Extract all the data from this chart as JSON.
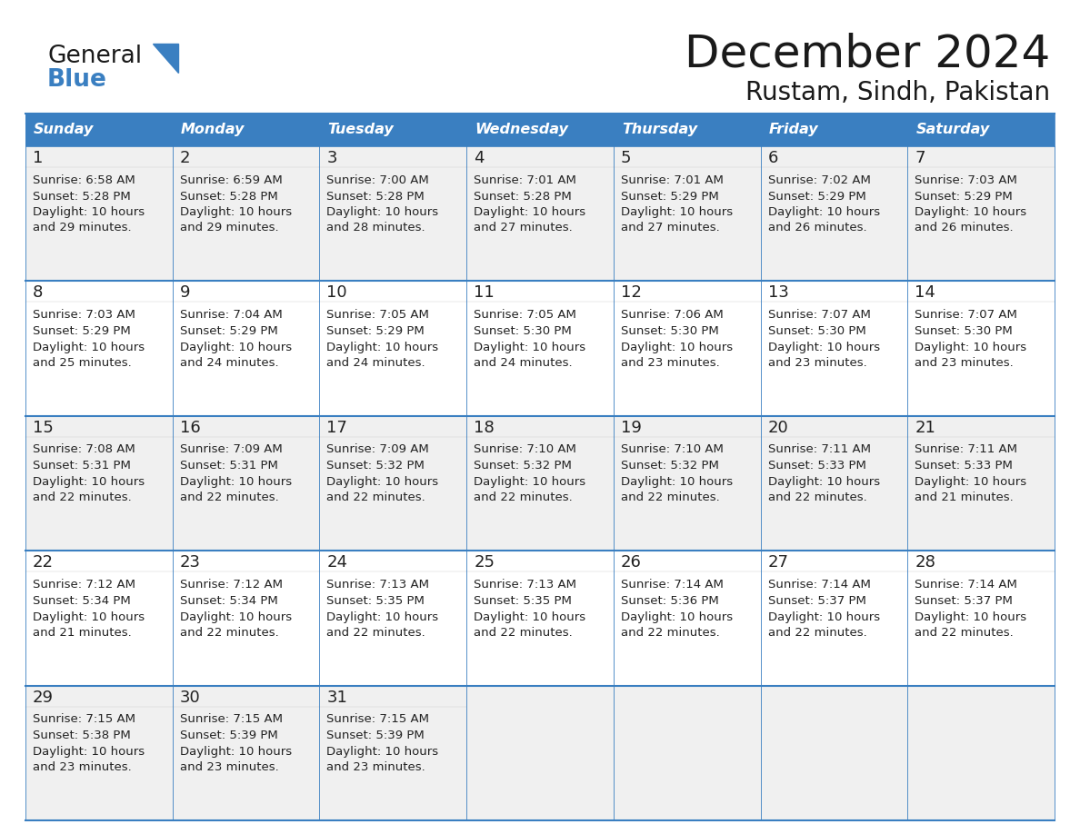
{
  "title": "December 2024",
  "subtitle": "Rustam, Sindh, Pakistan",
  "days_of_week": [
    "Sunday",
    "Monday",
    "Tuesday",
    "Wednesday",
    "Thursday",
    "Friday",
    "Saturday"
  ],
  "header_bg": "#3A7FC1",
  "header_text": "#FFFFFF",
  "row_bg_odd": "#F0F0F0",
  "row_bg_even": "#FFFFFF",
  "text_color": "#222222",
  "border_color": "#3A7FC1",
  "title_color": "#1a1a1a",
  "calendar_data": [
    [
      {
        "day": 1,
        "sunrise": "6:58 AM",
        "sunset": "5:28 PM",
        "daylight": "10 hours",
        "daylight2": "and 29 minutes."
      },
      {
        "day": 2,
        "sunrise": "6:59 AM",
        "sunset": "5:28 PM",
        "daylight": "10 hours",
        "daylight2": "and 29 minutes."
      },
      {
        "day": 3,
        "sunrise": "7:00 AM",
        "sunset": "5:28 PM",
        "daylight": "10 hours",
        "daylight2": "and 28 minutes."
      },
      {
        "day": 4,
        "sunrise": "7:01 AM",
        "sunset": "5:28 PM",
        "daylight": "10 hours",
        "daylight2": "and 27 minutes."
      },
      {
        "day": 5,
        "sunrise": "7:01 AM",
        "sunset": "5:29 PM",
        "daylight": "10 hours",
        "daylight2": "and 27 minutes."
      },
      {
        "day": 6,
        "sunrise": "7:02 AM",
        "sunset": "5:29 PM",
        "daylight": "10 hours",
        "daylight2": "and 26 minutes."
      },
      {
        "day": 7,
        "sunrise": "7:03 AM",
        "sunset": "5:29 PM",
        "daylight": "10 hours",
        "daylight2": "and 26 minutes."
      }
    ],
    [
      {
        "day": 8,
        "sunrise": "7:03 AM",
        "sunset": "5:29 PM",
        "daylight": "10 hours",
        "daylight2": "and 25 minutes."
      },
      {
        "day": 9,
        "sunrise": "7:04 AM",
        "sunset": "5:29 PM",
        "daylight": "10 hours",
        "daylight2": "and 24 minutes."
      },
      {
        "day": 10,
        "sunrise": "7:05 AM",
        "sunset": "5:29 PM",
        "daylight": "10 hours",
        "daylight2": "and 24 minutes."
      },
      {
        "day": 11,
        "sunrise": "7:05 AM",
        "sunset": "5:30 PM",
        "daylight": "10 hours",
        "daylight2": "and 24 minutes."
      },
      {
        "day": 12,
        "sunrise": "7:06 AM",
        "sunset": "5:30 PM",
        "daylight": "10 hours",
        "daylight2": "and 23 minutes."
      },
      {
        "day": 13,
        "sunrise": "7:07 AM",
        "sunset": "5:30 PM",
        "daylight": "10 hours",
        "daylight2": "and 23 minutes."
      },
      {
        "day": 14,
        "sunrise": "7:07 AM",
        "sunset": "5:30 PM",
        "daylight": "10 hours",
        "daylight2": "and 23 minutes."
      }
    ],
    [
      {
        "day": 15,
        "sunrise": "7:08 AM",
        "sunset": "5:31 PM",
        "daylight": "10 hours",
        "daylight2": "and 22 minutes."
      },
      {
        "day": 16,
        "sunrise": "7:09 AM",
        "sunset": "5:31 PM",
        "daylight": "10 hours",
        "daylight2": "and 22 minutes."
      },
      {
        "day": 17,
        "sunrise": "7:09 AM",
        "sunset": "5:32 PM",
        "daylight": "10 hours",
        "daylight2": "and 22 minutes."
      },
      {
        "day": 18,
        "sunrise": "7:10 AM",
        "sunset": "5:32 PM",
        "daylight": "10 hours",
        "daylight2": "and 22 minutes."
      },
      {
        "day": 19,
        "sunrise": "7:10 AM",
        "sunset": "5:32 PM",
        "daylight": "10 hours",
        "daylight2": "and 22 minutes."
      },
      {
        "day": 20,
        "sunrise": "7:11 AM",
        "sunset": "5:33 PM",
        "daylight": "10 hours",
        "daylight2": "and 22 minutes."
      },
      {
        "day": 21,
        "sunrise": "7:11 AM",
        "sunset": "5:33 PM",
        "daylight": "10 hours",
        "daylight2": "and 21 minutes."
      }
    ],
    [
      {
        "day": 22,
        "sunrise": "7:12 AM",
        "sunset": "5:34 PM",
        "daylight": "10 hours",
        "daylight2": "and 21 minutes."
      },
      {
        "day": 23,
        "sunrise": "7:12 AM",
        "sunset": "5:34 PM",
        "daylight": "10 hours",
        "daylight2": "and 22 minutes."
      },
      {
        "day": 24,
        "sunrise": "7:13 AM",
        "sunset": "5:35 PM",
        "daylight": "10 hours",
        "daylight2": "and 22 minutes."
      },
      {
        "day": 25,
        "sunrise": "7:13 AM",
        "sunset": "5:35 PM",
        "daylight": "10 hours",
        "daylight2": "and 22 minutes."
      },
      {
        "day": 26,
        "sunrise": "7:14 AM",
        "sunset": "5:36 PM",
        "daylight": "10 hours",
        "daylight2": "and 22 minutes."
      },
      {
        "day": 27,
        "sunrise": "7:14 AM",
        "sunset": "5:37 PM",
        "daylight": "10 hours",
        "daylight2": "and 22 minutes."
      },
      {
        "day": 28,
        "sunrise": "7:14 AM",
        "sunset": "5:37 PM",
        "daylight": "10 hours",
        "daylight2": "and 22 minutes."
      }
    ],
    [
      {
        "day": 29,
        "sunrise": "7:15 AM",
        "sunset": "5:38 PM",
        "daylight": "10 hours",
        "daylight2": "and 23 minutes."
      },
      {
        "day": 30,
        "sunrise": "7:15 AM",
        "sunset": "5:39 PM",
        "daylight": "10 hours",
        "daylight2": "and 23 minutes."
      },
      {
        "day": 31,
        "sunrise": "7:15 AM",
        "sunset": "5:39 PM",
        "daylight": "10 hours",
        "daylight2": "and 23 minutes."
      },
      null,
      null,
      null,
      null
    ]
  ],
  "logo_general_color": "#1a1a1a",
  "logo_blue_color": "#3A7FC1",
  "figsize": [
    11.88,
    9.18
  ],
  "dpi": 100
}
